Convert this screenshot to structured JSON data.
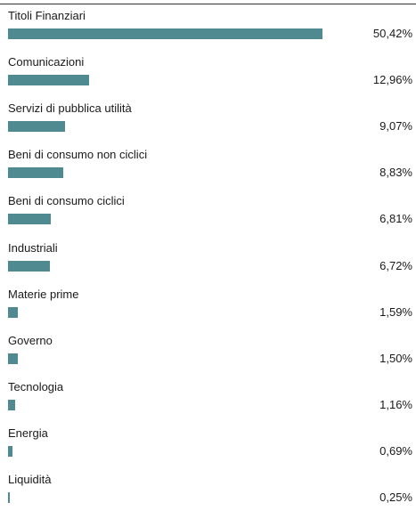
{
  "chart_data": {
    "type": "bar",
    "orientation": "horizontal",
    "categories": [
      "Titoli Finanziari",
      "Comunicazioni",
      "Servizi di pubblica utilità",
      "Beni di consumo non ciclici",
      "Beni di consumo ciclici",
      "Industriali",
      "Materie prime",
      "Governo",
      "Tecnologia",
      "Energia",
      "Liquidità"
    ],
    "values": [
      50.42,
      12.96,
      9.07,
      8.83,
      6.81,
      6.72,
      1.59,
      1.5,
      1.16,
      0.69,
      0.25
    ],
    "value_labels": [
      "50,42%",
      "12,96%",
      "9,07%",
      "8,83%",
      "6,81%",
      "6,72%",
      "1,59%",
      "1,50%",
      "1,16%",
      "0,69%",
      "0,25%"
    ],
    "unit": "%",
    "xlim": [
      0,
      50.42
    ],
    "grid": false,
    "legend": "none",
    "bar_color": "#4e8a90"
  }
}
